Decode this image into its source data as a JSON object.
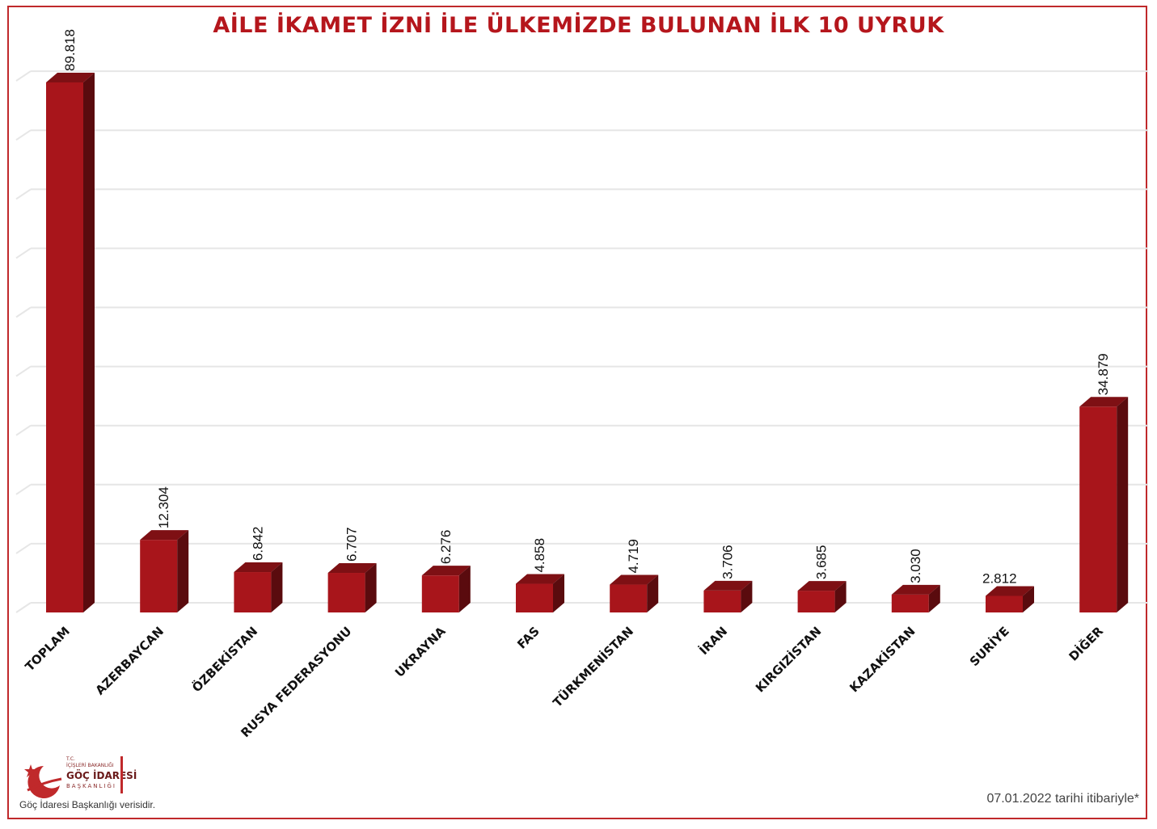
{
  "title": "AİLE İKAMET İZNİ İLE ÜLKEMİZDE BULUNAN İLK 10 UYRUK",
  "colors": {
    "bar_front": "#a8151b",
    "bar_top": "#7e1014",
    "bar_side": "#5a0b0e",
    "title": "#b5161c",
    "frame": "#c0292b",
    "grid": "#e6e6e6"
  },
  "chart_data": {
    "type": "bar",
    "title": "AİLE İKAMET İZNİ İLE ÜLKEMİZDE BULUNAN İLK 10 UYRUK",
    "categories": [
      "TOPLAM",
      "AZERBAYCAN",
      "ÖZBEKİSTAN",
      "RUSYA FEDERASYONU",
      "UKRAYNA",
      "FAS",
      "TÜRKMENİSTAN",
      "İRAN",
      "KIRGIZİSTAN",
      "KAZAKİSTAN",
      "SURİYE",
      "DİĞER"
    ],
    "values": [
      89818,
      12304,
      6842,
      6707,
      6276,
      4858,
      4719,
      3706,
      3685,
      3030,
      2812,
      34879
    ],
    "value_labels": [
      "89.818",
      "12.304",
      "6.842",
      "6.707",
      "6.276",
      "4.858",
      "4.719",
      "3.706",
      "3.685",
      "3.030",
      "2.812",
      "34.879"
    ],
    "xlabel": "",
    "ylabel": "",
    "ylim": [
      0,
      90000
    ],
    "grid": true,
    "legend": "none"
  },
  "logo": {
    "line1": "T.C.",
    "line2": "İÇİŞLERİ BAKANLIĞI",
    "line3": "GÖÇ İDARESİ",
    "line4": "BAŞKANLIĞI",
    "icon": "crescent-star-icon"
  },
  "footer": {
    "source": "Göç İdaresi Başkanlığı verisidir.",
    "date_note": "07.01.2022 tarihi itibariyle*"
  }
}
